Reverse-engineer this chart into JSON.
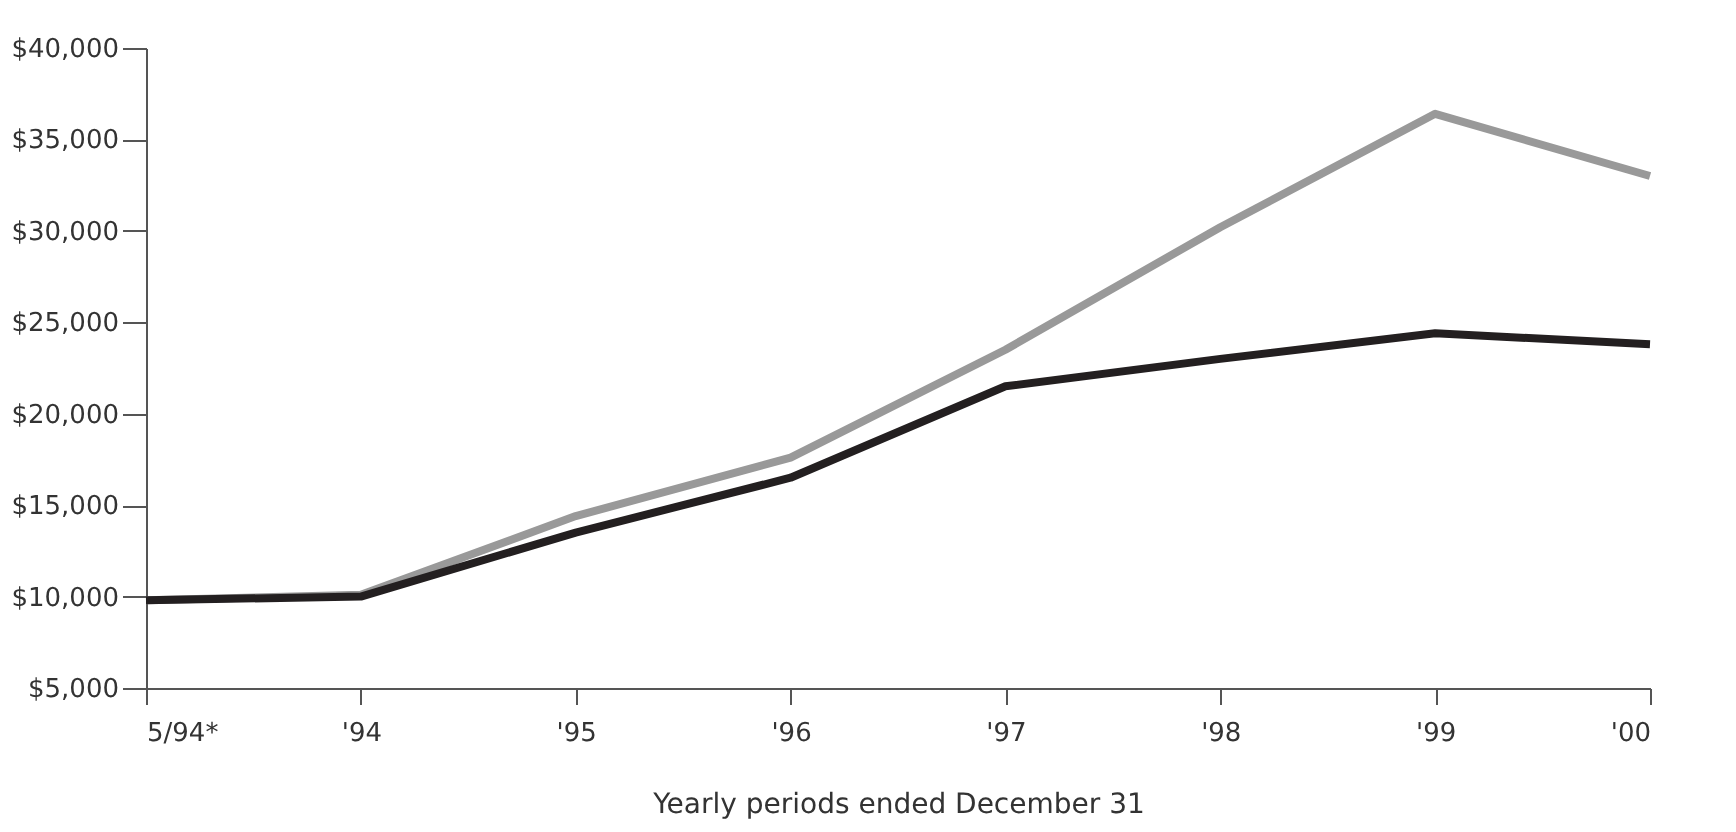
{
  "chart_data": {
    "type": "line",
    "xlabel": "Yearly periods ended December 31",
    "categories": [
      "5/94*",
      "'94",
      "'95",
      "'96",
      "'97",
      "'98",
      "'99",
      "'00"
    ],
    "series": [
      {
        "color": "#999999",
        "values": [
          9800,
          10100,
          14400,
          17600,
          23500,
          30200,
          36400,
          33000
        ]
      },
      {
        "color": "#231f20",
        "values": [
          9800,
          10000,
          13500,
          16500,
          21500,
          23000,
          24400,
          23800
        ]
      }
    ],
    "ylim": [
      5000,
      40000
    ],
    "yticks": [
      {
        "value": 5000,
        "label": "$5,000"
      },
      {
        "value": 10000,
        "label": "$10,000"
      },
      {
        "value": 15000,
        "label": "$15,000"
      },
      {
        "value": 20000,
        "label": "$20,000"
      },
      {
        "value": 25000,
        "label": "$25,000"
      },
      {
        "value": 30000,
        "label": "$30,000"
      },
      {
        "value": 35000,
        "label": "$35,000"
      },
      {
        "value": 40000,
        "label": "$40,000"
      }
    ],
    "grid": false,
    "marker": "none",
    "line_style": "solid"
  }
}
